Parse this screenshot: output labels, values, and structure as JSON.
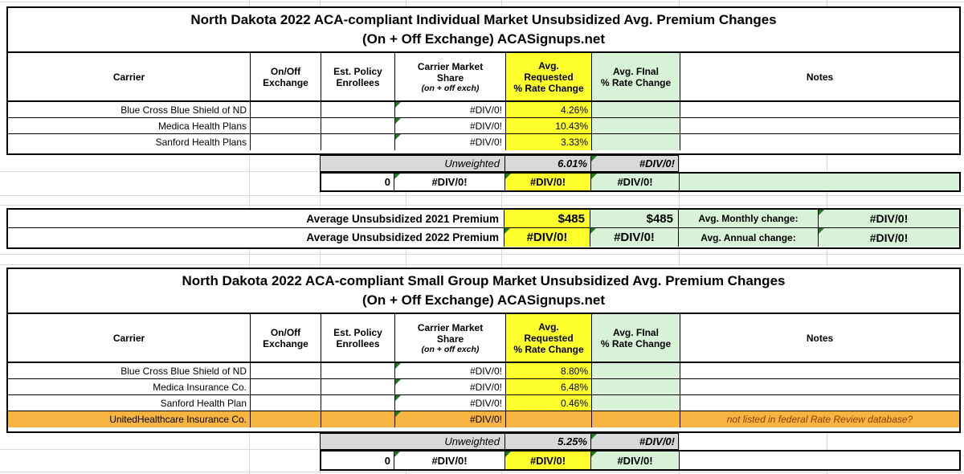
{
  "colors": {
    "yellow": "#FFFF2B",
    "green": "#D7F2D7",
    "gray": "#D9D9D9",
    "orange": "#F8B440",
    "orange_note_text": "#8F3B00",
    "error_triangle": "#1E7A1E",
    "grid_line": "#DADADA",
    "border": "#000000"
  },
  "headers": {
    "carrier": "Carrier",
    "on_off": "On/Off\nExchange",
    "enrollees": "Est. Policy\nEnrollees",
    "market_share": "Carrier Market\nShare",
    "market_share_sub": "(on + off exch)",
    "requested": "Avg.\nRequested\n% Rate Change",
    "final": "Avg. FInal\n% Rate Change",
    "notes": "Notes"
  },
  "table1": {
    "title_line1": "North Dakota 2022 ACA-compliant Individual Market Unsubsidized Avg. Premium Changes",
    "title_line2": "(On + Off Exchange) ACASignups.net",
    "rows": [
      {
        "carrier": "Blue Cross Blue Shield of ND",
        "on_off": "",
        "enrollees": "",
        "market_share": "#DIV/0!",
        "requested": "4.26%",
        "final": "",
        "notes": ""
      },
      {
        "carrier": "Medica Health Plans",
        "on_off": "",
        "enrollees": "",
        "market_share": "#DIV/0!",
        "requested": "10.43%",
        "final": "",
        "notes": ""
      },
      {
        "carrier": "Sanford Health Plans",
        "on_off": "",
        "enrollees": "",
        "market_share": "#DIV/0!",
        "requested": "3.33%",
        "final": "",
        "notes": ""
      }
    ],
    "unweighted_label": "Unweighted",
    "unweighted_requested": "6.01%",
    "unweighted_final": "#DIV/0!",
    "total_enrollees": "0",
    "total_market_share": "#DIV/0!",
    "total_requested": "#DIV/0!",
    "total_final": "#DIV/0!"
  },
  "summary": {
    "rows": [
      {
        "label": "Average Unsubsidized 2021 Premium",
        "requested": "$485",
        "final": "$485",
        "change_label": "Avg. Monthly change:",
        "change_value": "#DIV/0!"
      },
      {
        "label": "Average Unsubsidized 2022 Premium",
        "requested": "#DIV/0!",
        "final": "#DIV/0!",
        "change_label": "Avg. Annual change:",
        "change_value": "#DIV/0!"
      }
    ]
  },
  "table2": {
    "title_line1": "North Dakota 2022 ACA-compliant Small Group Market Unsubsidized Avg. Premium Changes",
    "title_line2": "(On + Off Exchange) ACASignups.net",
    "rows": [
      {
        "carrier": "Blue Cross Blue Shield of ND",
        "on_off": "",
        "enrollees": "",
        "market_share": "#DIV/0!",
        "requested": "8.80%",
        "final": "",
        "notes": ""
      },
      {
        "carrier": "Medica Insurance Co.",
        "on_off": "",
        "enrollees": "",
        "market_share": "#DIV/0!",
        "requested": "6.48%",
        "final": "",
        "notes": ""
      },
      {
        "carrier": "Sanford Health Plan",
        "on_off": "",
        "enrollees": "",
        "market_share": "#DIV/0!",
        "requested": "0.46%",
        "final": "",
        "notes": ""
      },
      {
        "carrier": "UnitedHealthcare Insurance Co.",
        "on_off": "",
        "enrollees": "",
        "market_share": "#DIV/0!",
        "requested": "",
        "final": "",
        "notes": "not listed in federal Rate Review database?"
      }
    ],
    "unweighted_label": "Unweighted",
    "unweighted_requested": "5.25%",
    "unweighted_final": "#DIV/0!",
    "total_enrollees": "0",
    "total_market_share": "#DIV/0!",
    "total_requested": "#DIV/0!",
    "total_final": "#DIV/0!"
  }
}
